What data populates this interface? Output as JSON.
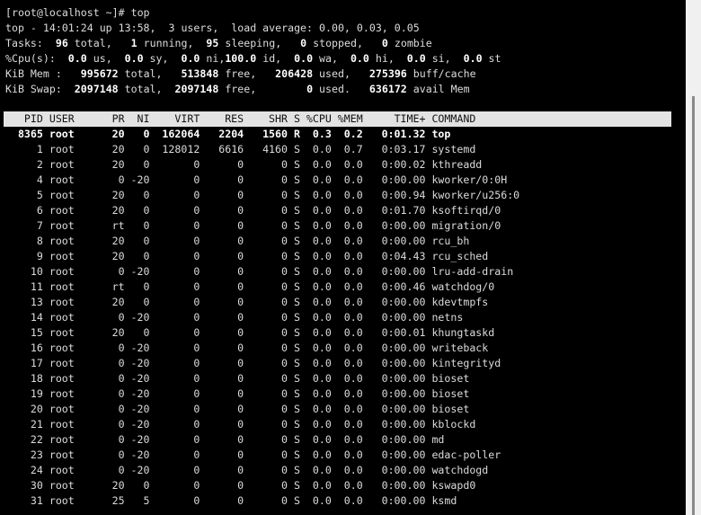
{
  "terminal": {
    "prompt": "[root@localhost ~]# top",
    "uptime_line": "top - 14:01:24 up 13:58,  3 users,  load average: 0.00, 0.03, 0.05",
    "tasks": {
      "label": "Tasks: ",
      "segments": [
        [
          " 96",
          " total, "
        ],
        [
          "  1",
          " running, "
        ],
        [
          " 95",
          " sleeping, "
        ],
        [
          "  0",
          " stopped, "
        ],
        [
          "  0",
          " zombie"
        ]
      ]
    },
    "cpu": {
      "label": "%Cpu(s): ",
      "segments": [
        [
          " 0.0",
          " us, "
        ],
        [
          " 0.0",
          " sy, "
        ],
        [
          " 0.0",
          " ni,"
        ],
        [
          "100.0",
          " id, "
        ],
        [
          " 0.0",
          " wa, "
        ],
        [
          " 0.0",
          " hi, "
        ],
        [
          " 0.0",
          " si, "
        ],
        [
          " 0.0",
          " st"
        ]
      ]
    },
    "mem": {
      "label": "KiB Mem : ",
      "segments": [
        [
          "  995672",
          " total, "
        ],
        [
          "  513848",
          " free, "
        ],
        [
          "  206428",
          " used, "
        ],
        [
          "  275396",
          " buff/cache"
        ]
      ]
    },
    "swap": {
      "label": "KiB Swap: ",
      "segments": [
        [
          " 2097148",
          " total, "
        ],
        [
          " 2097148",
          " free, "
        ],
        [
          "       0",
          " used. "
        ],
        [
          "  636172",
          " avail Mem"
        ]
      ]
    }
  },
  "columns": [
    "PID",
    "USER",
    "PR",
    "NI",
    "VIRT",
    "RES",
    "SHR",
    "S",
    "%CPU",
    "%MEM",
    "TIME+",
    "COMMAND"
  ],
  "processes": [
    [
      "8365",
      "root",
      "20",
      "0",
      "162064",
      "2204",
      "1560",
      "R",
      "0.3",
      "0.2",
      "0:01.32",
      "top"
    ],
    [
      "1",
      "root",
      "20",
      "0",
      "128012",
      "6616",
      "4160",
      "S",
      "0.0",
      "0.7",
      "0:03.17",
      "systemd"
    ],
    [
      "2",
      "root",
      "20",
      "0",
      "0",
      "0",
      "0",
      "S",
      "0.0",
      "0.0",
      "0:00.02",
      "kthreadd"
    ],
    [
      "4",
      "root",
      "0",
      "-20",
      "0",
      "0",
      "0",
      "S",
      "0.0",
      "0.0",
      "0:00.00",
      "kworker/0:0H"
    ],
    [
      "5",
      "root",
      "20",
      "0",
      "0",
      "0",
      "0",
      "S",
      "0.0",
      "0.0",
      "0:00.94",
      "kworker/u256:0"
    ],
    [
      "6",
      "root",
      "20",
      "0",
      "0",
      "0",
      "0",
      "S",
      "0.0",
      "0.0",
      "0:01.70",
      "ksoftirqd/0"
    ],
    [
      "7",
      "root",
      "rt",
      "0",
      "0",
      "0",
      "0",
      "S",
      "0.0",
      "0.0",
      "0:00.00",
      "migration/0"
    ],
    [
      "8",
      "root",
      "20",
      "0",
      "0",
      "0",
      "0",
      "S",
      "0.0",
      "0.0",
      "0:00.00",
      "rcu_bh"
    ],
    [
      "9",
      "root",
      "20",
      "0",
      "0",
      "0",
      "0",
      "S",
      "0.0",
      "0.0",
      "0:04.43",
      "rcu_sched"
    ],
    [
      "10",
      "root",
      "0",
      "-20",
      "0",
      "0",
      "0",
      "S",
      "0.0",
      "0.0",
      "0:00.00",
      "lru-add-drain"
    ],
    [
      "11",
      "root",
      "rt",
      "0",
      "0",
      "0",
      "0",
      "S",
      "0.0",
      "0.0",
      "0:00.46",
      "watchdog/0"
    ],
    [
      "13",
      "root",
      "20",
      "0",
      "0",
      "0",
      "0",
      "S",
      "0.0",
      "0.0",
      "0:00.00",
      "kdevtmpfs"
    ],
    [
      "14",
      "root",
      "0",
      "-20",
      "0",
      "0",
      "0",
      "S",
      "0.0",
      "0.0",
      "0:00.00",
      "netns"
    ],
    [
      "15",
      "root",
      "20",
      "0",
      "0",
      "0",
      "0",
      "S",
      "0.0",
      "0.0",
      "0:00.01",
      "khungtaskd"
    ],
    [
      "16",
      "root",
      "0",
      "-20",
      "0",
      "0",
      "0",
      "S",
      "0.0",
      "0.0",
      "0:00.00",
      "writeback"
    ],
    [
      "17",
      "root",
      "0",
      "-20",
      "0",
      "0",
      "0",
      "S",
      "0.0",
      "0.0",
      "0:00.00",
      "kintegrityd"
    ],
    [
      "18",
      "root",
      "0",
      "-20",
      "0",
      "0",
      "0",
      "S",
      "0.0",
      "0.0",
      "0:00.00",
      "bioset"
    ],
    [
      "19",
      "root",
      "0",
      "-20",
      "0",
      "0",
      "0",
      "S",
      "0.0",
      "0.0",
      "0:00.00",
      "bioset"
    ],
    [
      "20",
      "root",
      "0",
      "-20",
      "0",
      "0",
      "0",
      "S",
      "0.0",
      "0.0",
      "0:00.00",
      "bioset"
    ],
    [
      "21",
      "root",
      "0",
      "-20",
      "0",
      "0",
      "0",
      "S",
      "0.0",
      "0.0",
      "0:00.00",
      "kblockd"
    ],
    [
      "22",
      "root",
      "0",
      "-20",
      "0",
      "0",
      "0",
      "S",
      "0.0",
      "0.0",
      "0:00.00",
      "md"
    ],
    [
      "23",
      "root",
      "0",
      "-20",
      "0",
      "0",
      "0",
      "S",
      "0.0",
      "0.0",
      "0:00.00",
      "edac-poller"
    ],
    [
      "24",
      "root",
      "0",
      "-20",
      "0",
      "0",
      "0",
      "S",
      "0.0",
      "0.0",
      "0:00.00",
      "watchdogd"
    ],
    [
      "30",
      "root",
      "20",
      "0",
      "0",
      "0",
      "0",
      "S",
      "0.0",
      "0.0",
      "0:00.00",
      "kswapd0"
    ],
    [
      "31",
      "root",
      "25",
      "5",
      "0",
      "0",
      "0",
      "S",
      "0.0",
      "0.0",
      "0:00.00",
      "ksmd"
    ]
  ],
  "highlighted_row": 0,
  "colors": {
    "background": "#000000",
    "text": "#dcdcdc",
    "header_bar": "#e3e3e3",
    "scrollbar": "#f0f0f0"
  }
}
